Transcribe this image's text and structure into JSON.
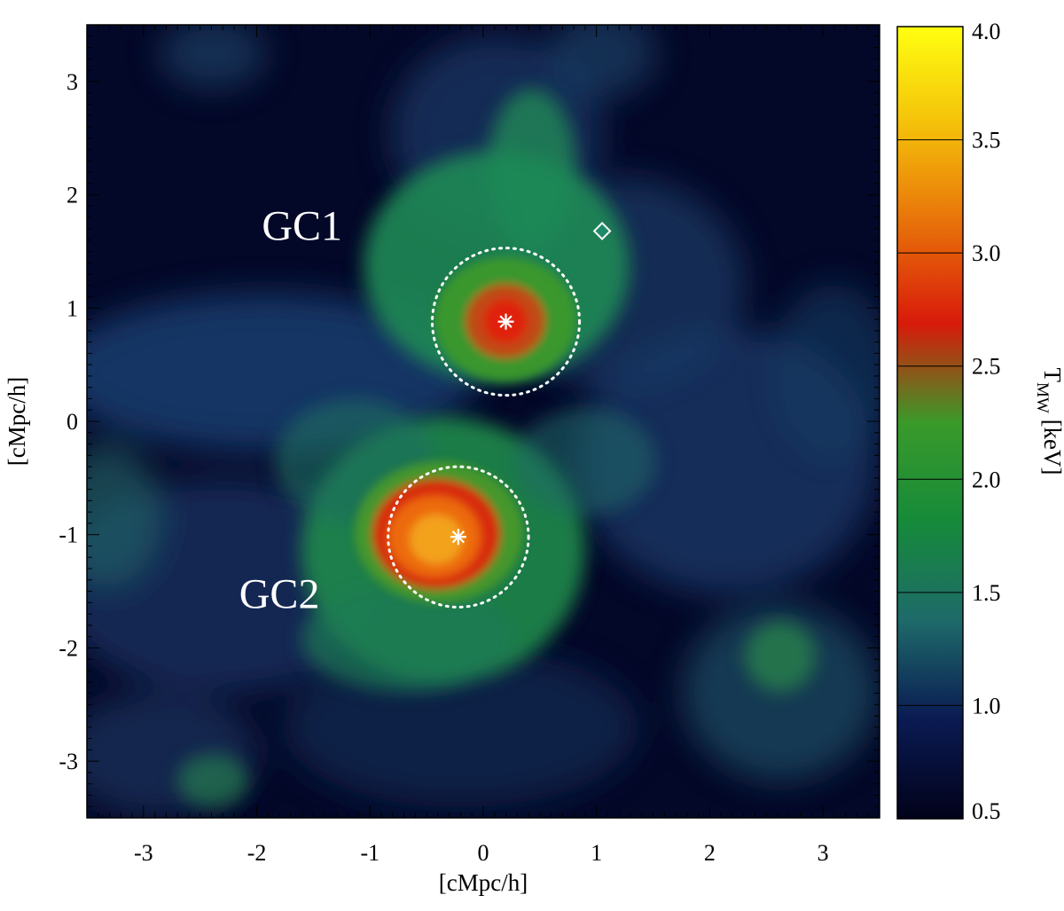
{
  "chart_data": {
    "type": "heatmap",
    "xlabel": "[cMpc/h]",
    "ylabel": "[cMpc/h]",
    "xlim": [
      -3.5,
      3.5
    ],
    "ylim": [
      -3.5,
      3.5
    ],
    "xticks": [
      "-3",
      "-2",
      "-1",
      "0",
      "1",
      "2",
      "3"
    ],
    "yticks": [
      "3",
      "2",
      "1",
      "0",
      "-1",
      "-2",
      "-3"
    ],
    "colorbar": {
      "label_main": "T",
      "label_sub": "MW",
      "label_unit": " [keV]",
      "range": [
        0.5,
        4.0
      ],
      "ticks": [
        "4.0",
        "3.5",
        "3.0",
        "2.5",
        "2.0",
        "1.5",
        "1.0",
        "0.5"
      ],
      "colors": [
        "#02021a",
        "#0a1a52",
        "#1e6a6a",
        "#168a3a",
        "#3a9a2a",
        "#d81a0a",
        "#e8700a",
        "#f4c00a",
        "#ffff10"
      ]
    },
    "annotations": [
      {
        "text": "GC1",
        "x": -1.6,
        "y": 1.6
      },
      {
        "text": "GC2",
        "x": -1.8,
        "y": -1.65
      }
    ],
    "clusters": [
      {
        "name": "GC1",
        "center": [
          0.2,
          0.88
        ],
        "radius": 0.65
      },
      {
        "name": "GC2",
        "center": [
          -0.22,
          -1.02
        ],
        "radius": 0.62
      }
    ],
    "marker": {
      "shape": "diamond",
      "x": 1.05,
      "y": 1.68
    }
  }
}
